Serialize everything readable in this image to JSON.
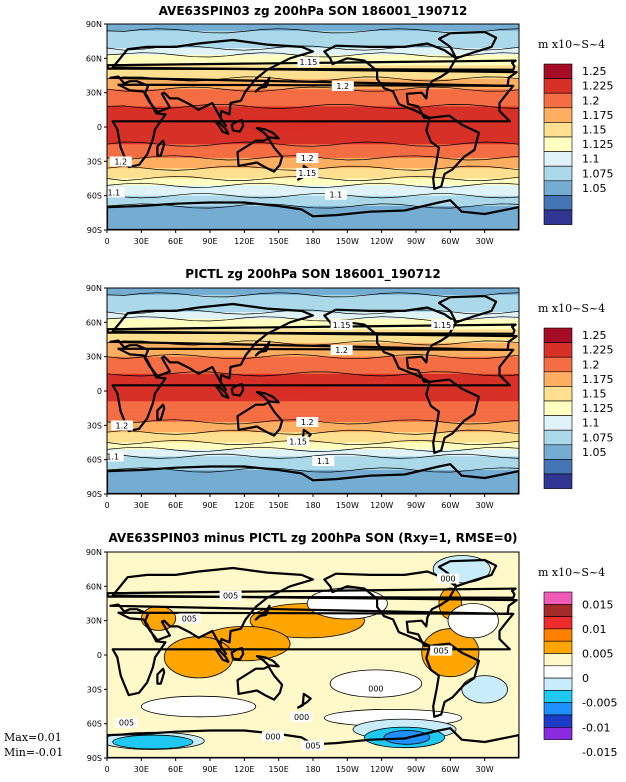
{
  "chart_data": [
    {
      "type": "heatmap",
      "title": "AVE63SPIN03 zg 200hPa SON 186001_190712",
      "units": "m x10~S~4",
      "x_ticks": [
        "0",
        "30E",
        "60E",
        "90E",
        "120E",
        "150E",
        "180",
        "150W",
        "120W",
        "90W",
        "60W",
        "30W"
      ],
      "y_ticks": [
        "90N",
        "60N",
        "30N",
        "0",
        "30S",
        "60S",
        "90S"
      ],
      "legend_levels": [
        "1.25",
        "1.225",
        "1.2",
        "1.175",
        "1.15",
        "1.125",
        "1.1",
        "1.075",
        "1.05"
      ],
      "colors": [
        "#a50d26",
        "#d73027",
        "#f46d43",
        "#fdae61",
        "#fee090",
        "#ffffbf",
        "#e0f3f8",
        "#abd9e9",
        "#74add1",
        "#4575b4",
        "#313695"
      ],
      "lat_profile": [
        [
          90,
          1.07
        ],
        [
          75,
          1.085
        ],
        [
          60,
          1.13
        ],
        [
          45,
          1.17
        ],
        [
          30,
          1.205
        ],
        [
          15,
          1.228
        ],
        [
          0,
          1.232
        ],
        [
          -15,
          1.225
        ],
        [
          -30,
          1.195
        ],
        [
          -45,
          1.15
        ],
        [
          -60,
          1.095
        ],
        [
          -75,
          1.06
        ],
        [
          -90,
          1.05
        ]
      ],
      "contour_labels": [
        "1.15",
        "1.2",
        "1.2",
        "1.2",
        "1.15",
        "1.1",
        "1.1"
      ]
    },
    {
      "type": "heatmap",
      "title": "PICTL zg 200hPa SON 186001_190712",
      "units": "m x10~S~4",
      "x_ticks": [
        "0",
        "30E",
        "60E",
        "90E",
        "120E",
        "150E",
        "180",
        "150W",
        "120W",
        "90W",
        "60W",
        "30W"
      ],
      "y_ticks": [
        "90N",
        "60N",
        "30N",
        "0",
        "30S",
        "60S",
        "90S"
      ],
      "legend_levels": [
        "1.25",
        "1.225",
        "1.2",
        "1.175",
        "1.15",
        "1.125",
        "1.1",
        "1.075",
        "1.05"
      ],
      "colors": [
        "#a50d26",
        "#d73027",
        "#f46d43",
        "#fdae61",
        "#fee090",
        "#ffffbf",
        "#e0f3f8",
        "#abd9e9",
        "#74add1",
        "#4575b4",
        "#313695"
      ],
      "lat_profile": [
        [
          90,
          1.07
        ],
        [
          75,
          1.085
        ],
        [
          60,
          1.13
        ],
        [
          45,
          1.17
        ],
        [
          30,
          1.203
        ],
        [
          15,
          1.225
        ],
        [
          0,
          1.228
        ],
        [
          -15,
          1.222
        ],
        [
          -30,
          1.193
        ],
        [
          -45,
          1.148
        ],
        [
          -60,
          1.093
        ],
        [
          -75,
          1.058
        ],
        [
          -90,
          1.05
        ]
      ],
      "contour_labels": [
        "1.15",
        "1.15",
        "1.2",
        "1.2",
        "1.2",
        "1.15",
        "1.1",
        "1.1"
      ]
    },
    {
      "type": "heatmap",
      "title": "AVE63SPIN03 minus PICTL zg 200hPa SON (Rxy=1, RMSE=0)",
      "units": "m x10~S~4",
      "x_ticks": [
        "0",
        "30E",
        "60E",
        "90E",
        "120E",
        "150E",
        "180",
        "150W",
        "120W",
        "90W",
        "60W",
        "30W"
      ],
      "y_ticks": [
        "90N",
        "60N",
        "30N",
        "0",
        "30S",
        "60S",
        "90S"
      ],
      "legend_levels": [
        "0.015",
        "0.01",
        "0.005",
        "0",
        "-0.005",
        "-0.01",
        "-0.015"
      ],
      "colors": [
        "#f05bb8",
        "#a52a2a",
        "#ee2c2c",
        "#ff7f00",
        "#ffa500",
        "#fff8c8",
        "#ffffff",
        "#c8ecfa",
        "#1ec8f0",
        "#1e90ff",
        "#1c3cc8",
        "#8a2be2"
      ],
      "contour_labels": [
        "000",
        "005",
        "005",
        "005",
        "000",
        "005",
        "000",
        "000",
        "005"
      ],
      "max_text": "Max=0.01",
      "min_text": "Min=-0.01"
    }
  ]
}
